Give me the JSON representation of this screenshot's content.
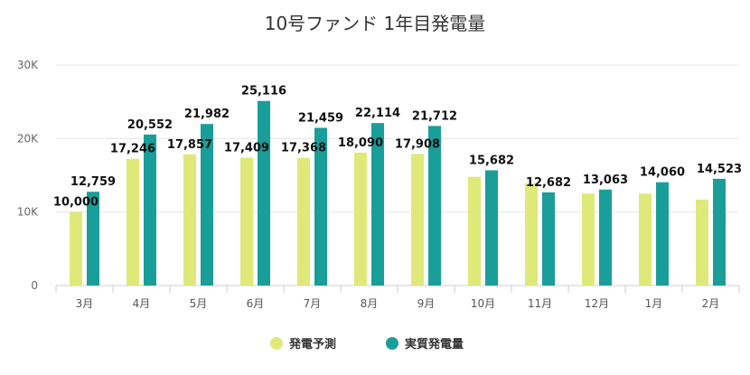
{
  "chart_data": {
    "type": "bar",
    "title": "10号ファンド 1年目発電量",
    "xlabel": "",
    "ylabel": "",
    "categories": [
      "3月",
      "4月",
      "5月",
      "6月",
      "7月",
      "8月",
      "9月",
      "10月",
      "11月",
      "12月",
      "1月",
      "2月"
    ],
    "ylim": [
      0,
      30000
    ],
    "yticks": [
      0,
      10000,
      20000,
      30000
    ],
    "ytick_labels": [
      "0",
      "10K",
      "20K",
      "30K"
    ],
    "grid": true,
    "legend_position": "bottom",
    "series": [
      {
        "name": "発電予測",
        "color": "#dfe97a",
        "values": [
          10000,
          17246,
          17857,
          17409,
          17368,
          18090,
          17908,
          14800,
          13900,
          12500,
          12500,
          11700
        ],
        "labels": [
          "10,000",
          "17,246",
          "17,857",
          "17,409",
          "17,368",
          "18,090",
          "17,908",
          null,
          null,
          null,
          null,
          null
        ]
      },
      {
        "name": "実質発電量",
        "color": "#1a9e9a",
        "values": [
          12759,
          20552,
          21982,
          25116,
          21459,
          22114,
          21712,
          15682,
          12682,
          13063,
          14060,
          14523
        ],
        "labels": [
          "12,759",
          "20,552",
          "21,982",
          "25,116",
          "21,459",
          "22,114",
          "21,712",
          "15,682",
          "12,682",
          "13,063",
          "14,060",
          "14,523"
        ]
      }
    ]
  }
}
